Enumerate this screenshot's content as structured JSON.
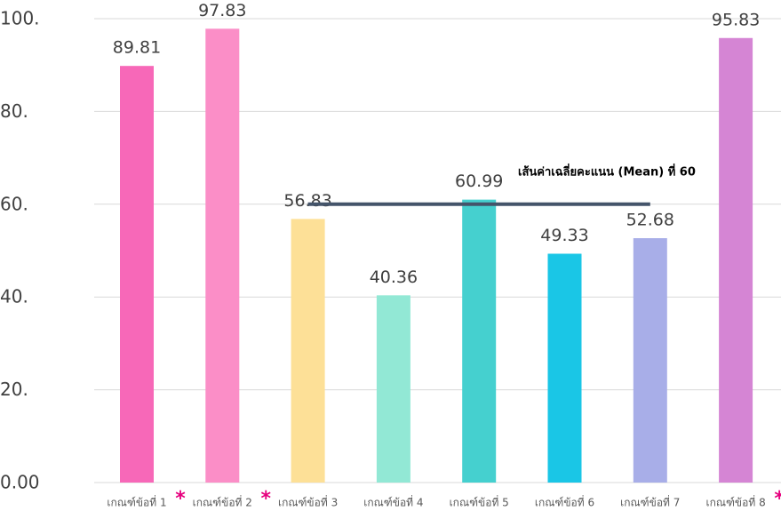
{
  "chart_data": {
    "type": "bar",
    "categories": [
      "เกณฑ์ข้อที่ 1",
      "เกณฑ์ข้อที่ 2",
      "เกณฑ์ข้อที่ 3",
      "เกณฑ์ข้อที่ 4",
      "เกณฑ์ข้อที่ 5",
      "เกณฑ์ข้อที่ 6",
      "เกณฑ์ข้อที่ 7",
      "เกณฑ์ข้อที่ 8"
    ],
    "category_markers": [
      "*",
      "*",
      null,
      null,
      null,
      null,
      null,
      "*"
    ],
    "values": [
      89.81,
      97.83,
      56.83,
      40.36,
      60.99,
      49.33,
      52.68,
      95.83
    ],
    "colors": [
      "#f768b8",
      "#fb8ec7",
      "#fde097",
      "#92e8d5",
      "#45d0cf",
      "#1ac6e6",
      "#a8aee8",
      "#d585d4"
    ],
    "ylim": [
      0,
      100
    ],
    "yticks": [
      {
        "value": 0,
        "label": "0.00"
      },
      {
        "value": 20,
        "label": "20."
      },
      {
        "value": 40,
        "label": "40."
      },
      {
        "value": 60,
        "label": "60."
      },
      {
        "value": 80,
        "label": "80."
      },
      {
        "value": 100,
        "label": "100."
      }
    ],
    "grid": true,
    "mean_line": {
      "value": 60,
      "label": "เส้นค่าเฉลี่ยคะแนน (Mean) ที่ 60",
      "color": "#44546a"
    }
  }
}
